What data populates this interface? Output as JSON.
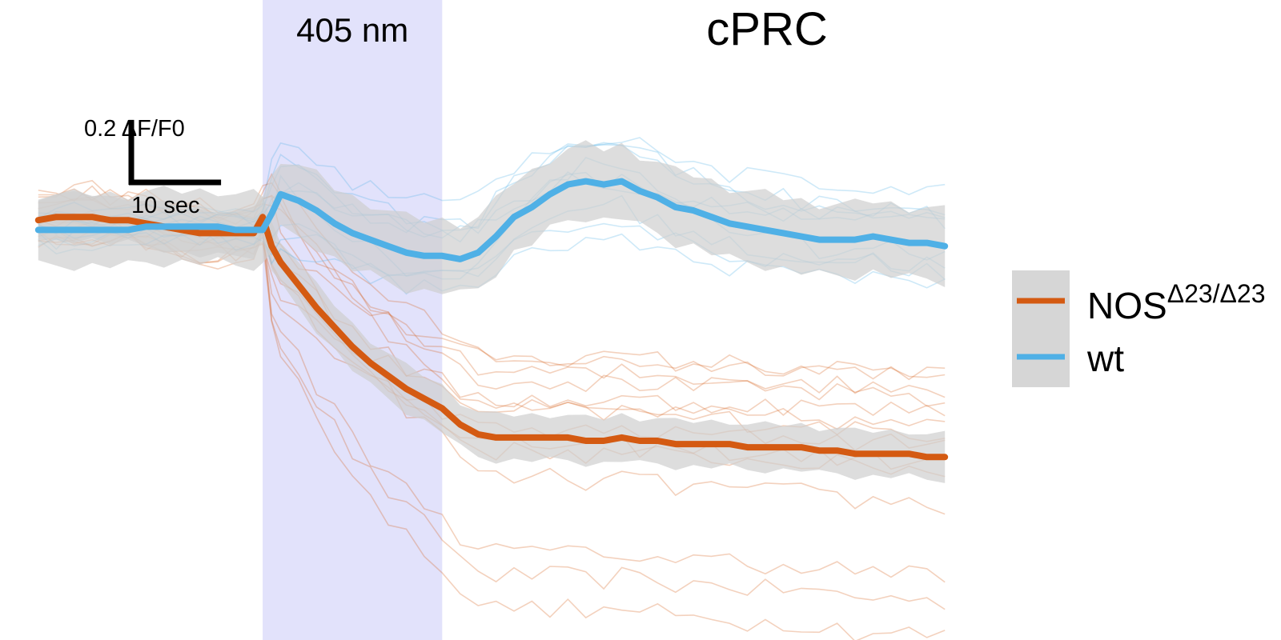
{
  "chart_data": {
    "type": "line",
    "title": "cPRC",
    "stimulus": {
      "label": "405 nm",
      "start_sec": 0,
      "end_sec": 20,
      "color": "#e2e2fb"
    },
    "scale_bar": {
      "y_value": 0.2,
      "y_label": "0.2 ΔF/F0",
      "x_value": 10,
      "x_label": "10 sec"
    },
    "xlabel": "",
    "ylabel": "",
    "xlim": [
      -25.7,
      76.7
    ],
    "ylim": [
      -1.19,
      0.61
    ],
    "legend_position": "right",
    "x": [
      -25,
      -23,
      -21,
      -19,
      -17,
      -15,
      -13,
      -11,
      -9,
      -7,
      -5,
      -3,
      -1,
      0,
      1,
      2,
      4,
      6,
      8,
      10,
      12,
      14,
      16,
      18,
      20,
      22,
      24,
      26,
      28,
      30,
      32,
      34,
      36,
      38,
      40,
      42,
      44,
      46,
      48,
      50,
      52,
      54,
      56,
      58,
      60,
      62,
      64,
      66,
      68,
      70,
      72,
      74,
      76
    ],
    "series": [
      {
        "name": "NOS",
        "name_superscript": "Δ23/Δ23",
        "color": "#d45a12",
        "values": [
          0.03,
          0.04,
          0.04,
          0.04,
          0.03,
          0.03,
          0.02,
          0.01,
          0.0,
          -0.01,
          -0.01,
          -0.01,
          -0.01,
          0.04,
          -0.05,
          -0.1,
          -0.17,
          -0.24,
          -0.3,
          -0.36,
          -0.41,
          -0.45,
          -0.49,
          -0.52,
          -0.55,
          -0.6,
          -0.63,
          -0.64,
          -0.64,
          -0.64,
          -0.64,
          -0.64,
          -0.65,
          -0.65,
          -0.64,
          -0.65,
          -0.65,
          -0.66,
          -0.66,
          -0.66,
          -0.66,
          -0.67,
          -0.67,
          -0.67,
          -0.67,
          -0.68,
          -0.68,
          -0.69,
          -0.69,
          -0.69,
          -0.69,
          -0.7,
          -0.7
        ]
      },
      {
        "name": "wt",
        "color": "#4fb0e6",
        "values": [
          0.0,
          0.0,
          0.0,
          0.0,
          0.0,
          0.0,
          0.01,
          0.01,
          0.01,
          0.01,
          0.01,
          0.0,
          0.0,
          0.0,
          0.05,
          0.11,
          0.09,
          0.06,
          0.02,
          -0.01,
          -0.03,
          -0.05,
          -0.07,
          -0.08,
          -0.08,
          -0.09,
          -0.07,
          -0.02,
          0.04,
          0.07,
          0.11,
          0.14,
          0.15,
          0.14,
          0.15,
          0.12,
          0.1,
          0.07,
          0.06,
          0.04,
          0.02,
          0.01,
          0.0,
          -0.01,
          -0.02,
          -0.03,
          -0.03,
          -0.03,
          -0.02,
          -0.03,
          -0.04,
          -0.04,
          -0.05
        ]
      }
    ],
    "legend": [
      {
        "label": "NOS",
        "superscript": "Δ23/Δ23",
        "color": "#d45a12"
      },
      {
        "label": "wt",
        "color": "#4fb0e6"
      }
    ],
    "band_color": "#cfcfcf"
  }
}
